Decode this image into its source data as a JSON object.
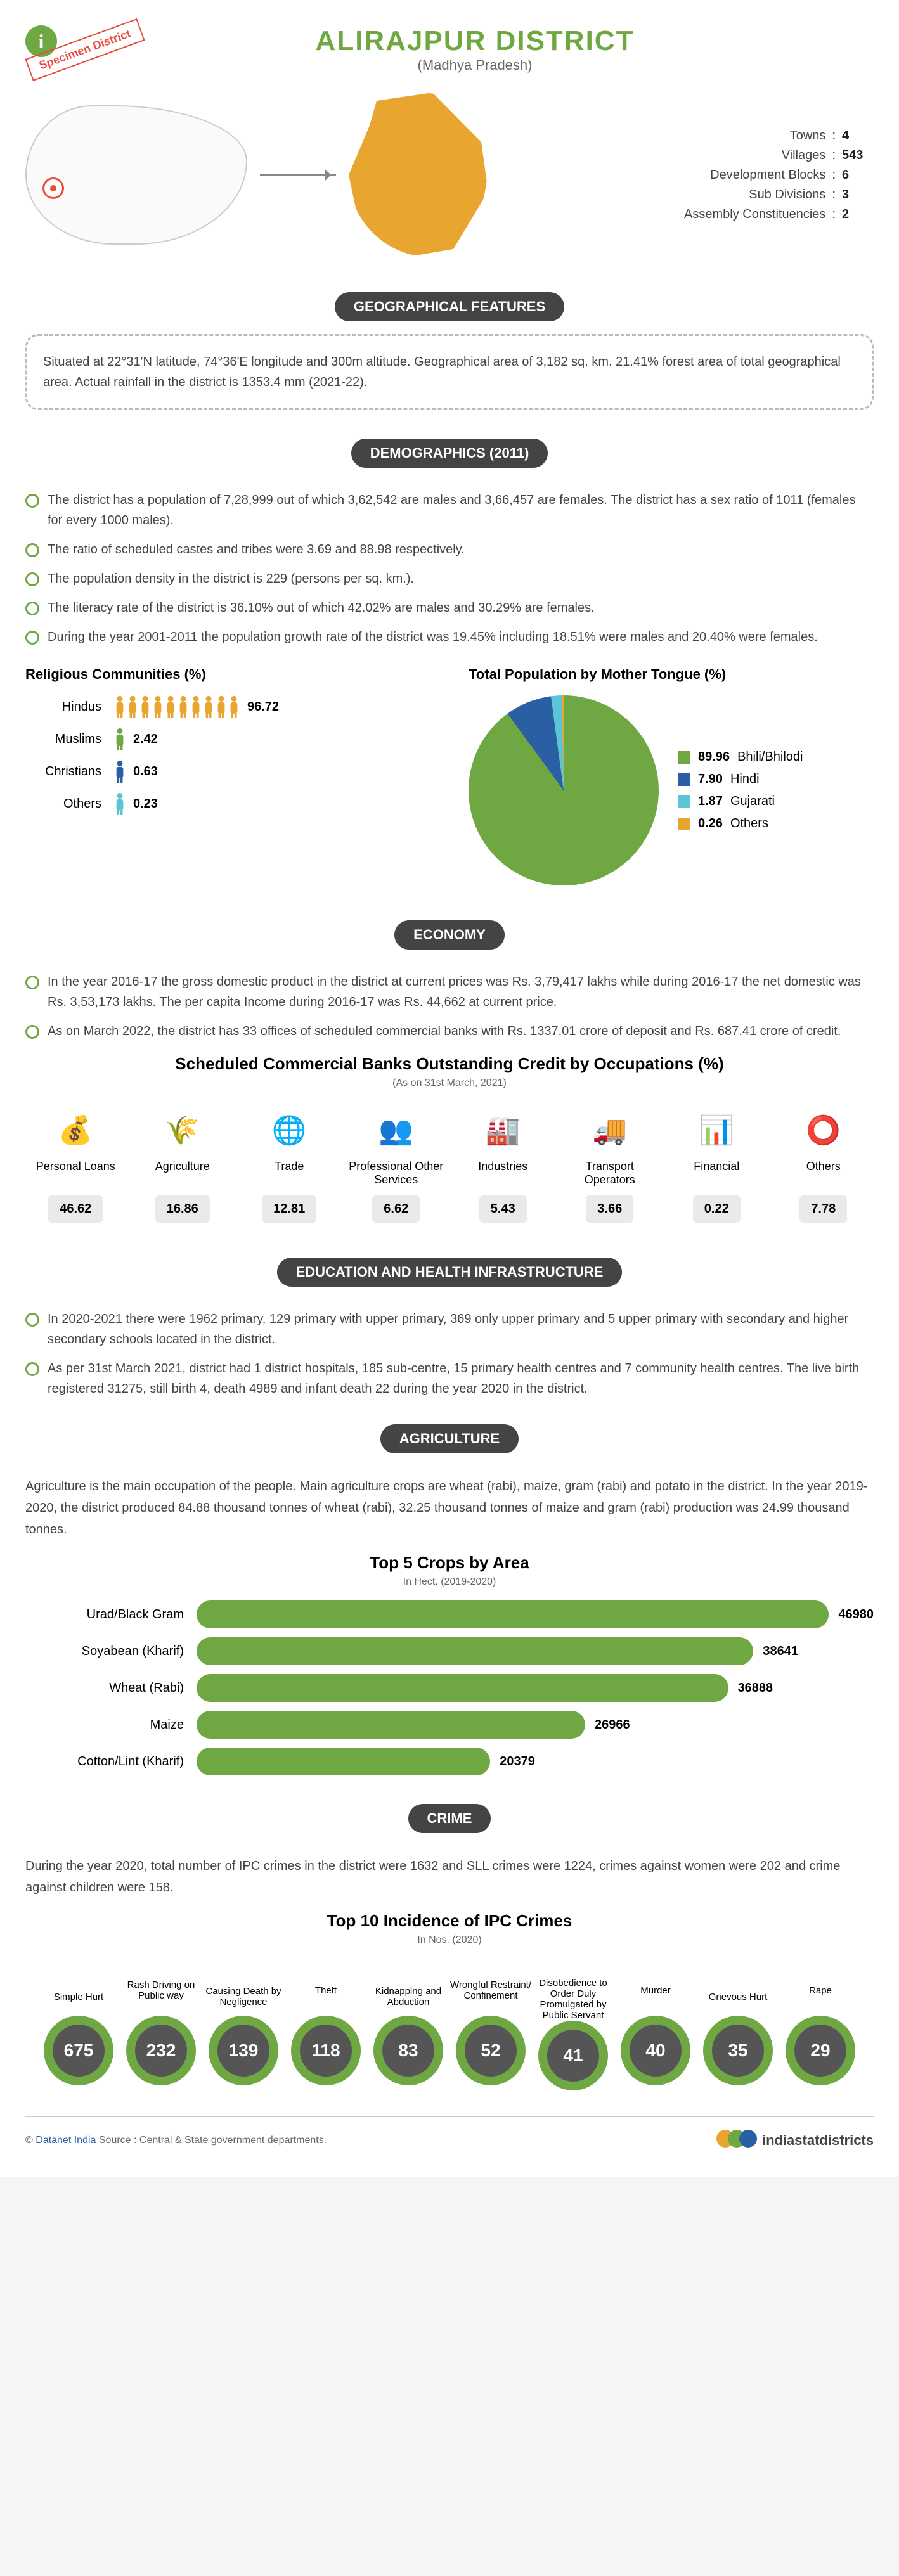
{
  "header": {
    "title": "ALIRAJPUR DISTRICT",
    "subtitle": "(Madhya Pradesh)",
    "specimen": "Specimen District"
  },
  "summary": [
    {
      "label": "Towns",
      "value": "4"
    },
    {
      "label": "Villages",
      "value": "543"
    },
    {
      "label": "Development Blocks",
      "value": "6"
    },
    {
      "label": "Sub Divisions",
      "value": "3"
    },
    {
      "label": "Assembly Constituencies",
      "value": "2"
    }
  ],
  "geo": {
    "header": "GEOGRAPHICAL FEATURES",
    "text": "Situated at 22°31'N latitude, 74°36'E longitude and 300m altitude. Geographical area of 3,182 sq. km. 21.41% forest area of total geographical area. Actual rainfall in the district is 1353.4 mm (2021-22)."
  },
  "demographics": {
    "header": "DEMOGRAPHICS (2011)",
    "bullets": [
      "The district has a population of 7,28,999 out of which 3,62,542 are males and 3,66,457 are females. The district has a sex ratio of 1011 (females for every 1000 males).",
      "The ratio of scheduled castes and tribes were 3.69 and 88.98 respectively.",
      "The population density in the district is 229 (persons per sq. km.).",
      "The literacy rate of the district is 36.10% out of which 42.02% are males and 30.29% are females.",
      "During the year 2001-2011 the population growth rate of the district was 19.45% including 18.51% were males and 20.40% were females."
    ],
    "religion_title": "Religious Communities (%)",
    "religion": [
      {
        "label": "Hindus",
        "value": "96.72",
        "count": 10,
        "color": "#e8a530"
      },
      {
        "label": "Muslims",
        "value": "2.42",
        "count": 1,
        "color": "#6fa843"
      },
      {
        "label": "Christians",
        "value": "0.63",
        "count": 1,
        "color": "#2b5fa3"
      },
      {
        "label": "Others",
        "value": "0.23",
        "count": 1,
        "color": "#5bc5d6"
      }
    ],
    "tongue_title": "Total Population by Mother Tongue (%)",
    "tongue": [
      {
        "label": "Bhili/Bhilodi",
        "value": "89.96",
        "color": "#6fa843"
      },
      {
        "label": "Hindi",
        "value": "7.90",
        "color": "#2b5fa3"
      },
      {
        "label": "Gujarati",
        "value": "1.87",
        "color": "#5bc5d6"
      },
      {
        "label": "Others",
        "value": "0.26",
        "color": "#e8a530"
      }
    ],
    "pie_gradient": "conic-gradient(#6fa843 0% 89.96%, #2b5fa3 89.96% 97.86%, #5bc5d6 97.86% 99.73%, #e8a530 99.73% 100%)"
  },
  "economy": {
    "header": "ECONOMY",
    "bullets": [
      "In the year 2016-17 the gross domestic product in the district at current prices was Rs. 3,79,417 lakhs while during 2016-17 the net domestic was Rs. 3,53,173 lakhs. The per capita Income during 2016-17 was Rs. 44,662 at current price.",
      "As on March 2022, the district has 33 offices of scheduled commercial banks with Rs. 1337.01 crore of deposit and Rs. 687.41 crore of credit."
    ],
    "credit_title": "Scheduled Commercial Banks Outstanding Credit by Occupations (%)",
    "credit_note": "(As on 31st March, 2021)",
    "credit": [
      {
        "label": "Personal Loans",
        "value": "46.62",
        "icon": "💰"
      },
      {
        "label": "Agriculture",
        "value": "16.86",
        "icon": "🌾"
      },
      {
        "label": "Trade",
        "value": "12.81",
        "icon": "🌐"
      },
      {
        "label": "Professional Other Services",
        "value": "6.62",
        "icon": "👥"
      },
      {
        "label": "Industries",
        "value": "5.43",
        "icon": "🏭"
      },
      {
        "label": "Transport Operators",
        "value": "3.66",
        "icon": "🚚"
      },
      {
        "label": "Financial",
        "value": "0.22",
        "icon": "📊"
      },
      {
        "label": "Others",
        "value": "7.78",
        "icon": "⭕"
      }
    ]
  },
  "education": {
    "header": "EDUCATION AND HEALTH INFRASTRUCTURE",
    "bullets": [
      "In 2020-2021 there were 1962 primary, 129 primary with upper primary, 369 only upper primary and 5 upper primary with secondary and higher secondary schools located in the district.",
      "As per 31st March 2021, district had 1 district hospitals, 185 sub-centre, 15 primary health centres and 7 community health centres. The live birth registered 31275, still birth 4, death 4989 and infant death 22 during the year 2020 in the district."
    ]
  },
  "agriculture": {
    "header": "AGRICULTURE",
    "text": "Agriculture is the main occupation of the people. Main agriculture crops are wheat (rabi), maize, gram (rabi) and potato in the district. In the year 2019-2020, the district produced 84.88 thousand tonnes of wheat (rabi), 32.25 thousand tonnes of maize and gram (rabi) production was 24.99 thousand tonnes.",
    "crops_title": "Top 5 Crops by Area",
    "crops_note": "In Hect. (2019-2020)",
    "crops_max": 46980,
    "crops": [
      {
        "label": "Urad/Black Gram",
        "value": 46980
      },
      {
        "label": "Soyabean (Kharif)",
        "value": 38641
      },
      {
        "label": "Wheat (Rabi)",
        "value": 36888
      },
      {
        "label": "Maize",
        "value": 26966
      },
      {
        "label": "Cotton/Lint (Kharif)",
        "value": 20379
      }
    ],
    "bar_color": "#6fa843"
  },
  "crime": {
    "header": "CRIME",
    "text": "During the year 2020, total number of IPC crimes in the district were 1632 and SLL crimes were 1224, crimes against women were 202 and crime against children were 158.",
    "ipc_title": "Top 10 Incidence of IPC Crimes",
    "ipc_note": "In Nos. (2020)",
    "ipc": [
      {
        "label": "Simple Hurt",
        "value": "675",
        "pos": "down"
      },
      {
        "label": "Rash Driving on Public way",
        "value": "232",
        "pos": "up"
      },
      {
        "label": "Causing Death by Negligence",
        "value": "139",
        "pos": "down"
      },
      {
        "label": "Theft",
        "value": "118",
        "pos": "up"
      },
      {
        "label": "Kidnapping and Abduction",
        "value": "83",
        "pos": "down"
      },
      {
        "label": "Wrongful Restraint/ Confinement",
        "value": "52",
        "pos": "up"
      },
      {
        "label": "Disobedience to Order Duly Promulgated by Public Servant",
        "value": "41",
        "pos": "down"
      },
      {
        "label": "Murder",
        "value": "40",
        "pos": "up"
      },
      {
        "label": "Grievous Hurt",
        "value": "35",
        "pos": "down"
      },
      {
        "label": "Rape",
        "value": "29",
        "pos": "up"
      }
    ]
  },
  "footer": {
    "left_prefix": "© ",
    "left_link": "Datanet India",
    "left_rest": " Source : Central & State government departments.",
    "right": "indiastatdistricts",
    "disc_colors": [
      "#e8a530",
      "#6fa843",
      "#2b5fa3"
    ]
  }
}
